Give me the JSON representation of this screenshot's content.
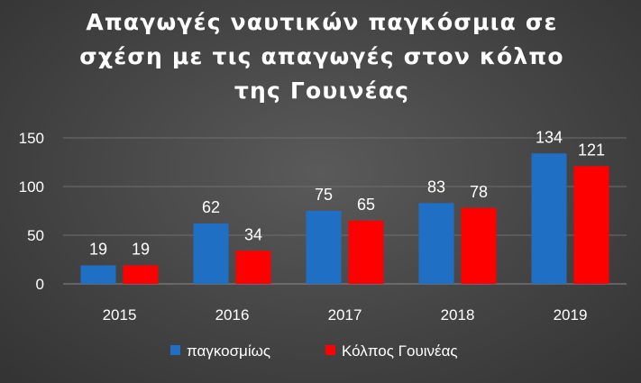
{
  "chart_data": {
    "type": "bar",
    "title_lines": [
      "Απαγωγές ναυτικών παγκόσμια σε",
      "σχέση με τις απαγωγές στον κόλπο",
      "της Γουινέας"
    ],
    "categories": [
      "2015",
      "2016",
      "2017",
      "2018",
      "2019"
    ],
    "series": [
      {
        "name": "παγκοσμίως",
        "values": [
          19,
          62,
          75,
          83,
          134
        ],
        "color": "#1F6FC5"
      },
      {
        "name": "Κόλπος Γουινέας",
        "values": [
          19,
          34,
          65,
          78,
          121
        ],
        "color": "#FF0000"
      }
    ],
    "ylim": [
      0,
      150
    ],
    "yticks": [
      0,
      50,
      100,
      150
    ],
    "grid": true,
    "legend_position": "bottom"
  }
}
